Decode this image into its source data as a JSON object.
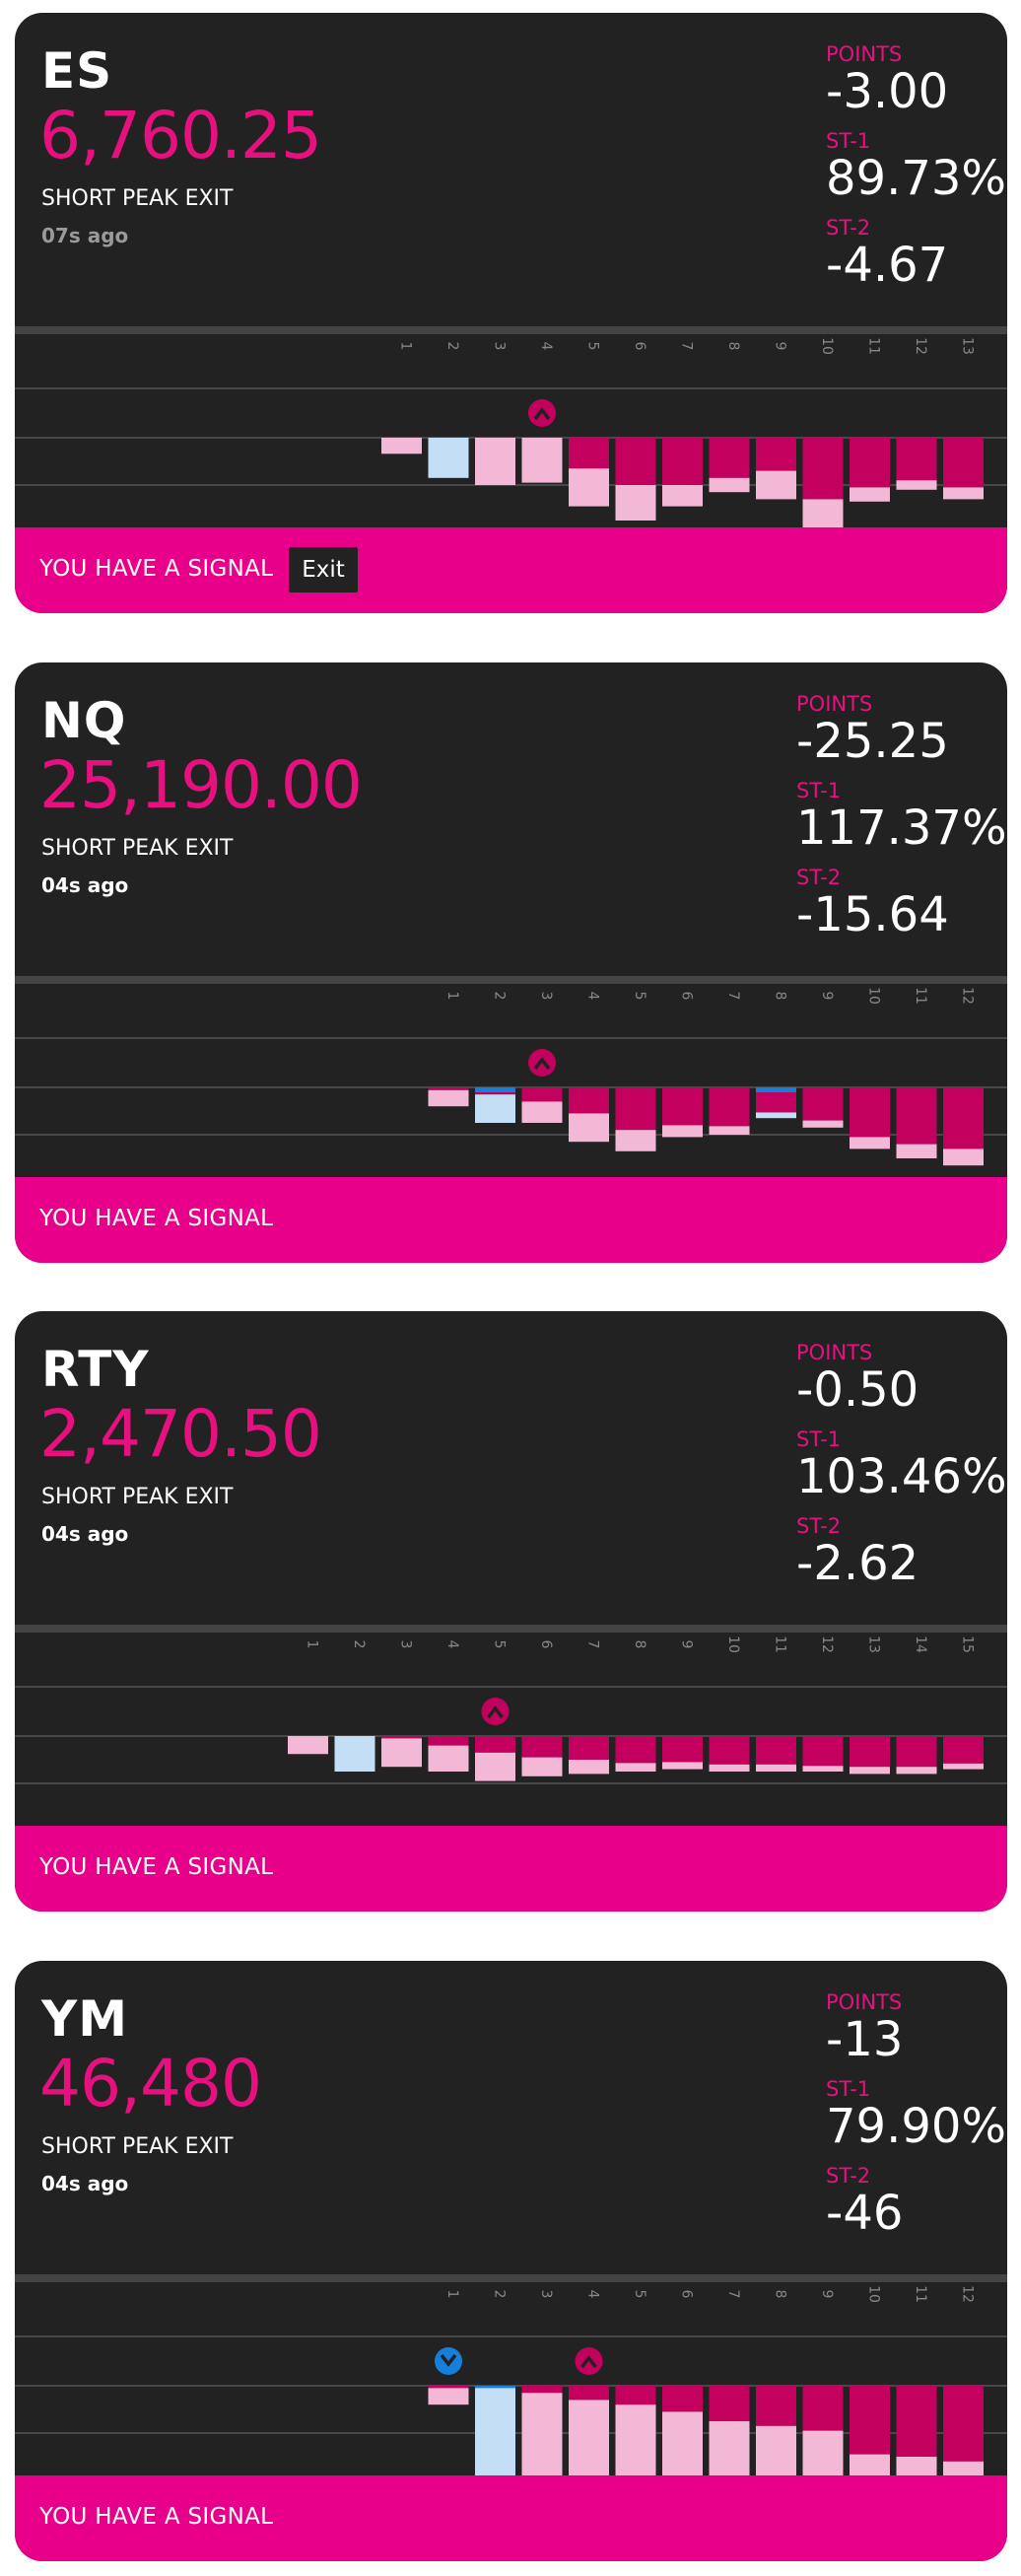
{
  "colors": {
    "card_bg": "#222222",
    "accent": "#e6117f",
    "footer_bg": "#e8008a",
    "bar_magenta": "#c4005e",
    "bar_pink": "#f2b8d6",
    "bar_light_blue": "#c4dff5",
    "bar_blue": "#1480dc"
  },
  "cards": [
    {
      "symbol": "ES",
      "price": "6,760.25",
      "signal_type": "SHORT PEAK EXIT",
      "age": "07s ago",
      "age_dim": true,
      "points_label": "POINTS",
      "points": "-3.00",
      "st1_label": "ST-1",
      "st1": "89.73%",
      "st2_label": "ST-2",
      "st2": "-4.67",
      "footer_text": "YOU HAVE A SIGNAL",
      "exit_label": "Exit",
      "chart_data": {
        "type": "bar",
        "categories": [
          "1",
          "2",
          "3",
          "4",
          "5",
          "6",
          "7",
          "8",
          "9",
          "10",
          "11",
          "12",
          "13"
        ],
        "bars": [
          {
            "cap": "none",
            "light": "pink",
            "value": 0.34
          },
          {
            "cap": "blue",
            "light": "lightblue",
            "value": 0.85
          },
          {
            "cap": "magenta",
            "light": "pink",
            "value": 1.0
          },
          {
            "cap": "magenta",
            "light": "pink",
            "value": 0.95
          },
          {
            "cap": "magenta",
            "light": "pink",
            "value": 0.8
          },
          {
            "cap": "magenta",
            "light": "pink",
            "value": 0.75
          },
          {
            "cap": "magenta",
            "light": "pink",
            "value": 0.45
          },
          {
            "cap": "magenta",
            "light": "pink",
            "value": 0.3
          },
          {
            "cap": "magenta",
            "light": "pink",
            "value": 0.6
          },
          {
            "cap": "magenta",
            "light": "pink",
            "value": 0.7
          },
          {
            "cap": "magenta",
            "light": "pink",
            "value": 0.3
          },
          {
            "cap": "magenta",
            "light": "pink",
            "value": 0.2
          },
          {
            "cap": "magenta",
            "light": "pink",
            "value": 0.25
          }
        ],
        "bar_totals": [
          0.34,
          0.85,
          1.0,
          0.95,
          1.45,
          1.75,
          1.45,
          1.15,
          1.3,
          2.0,
          1.35,
          1.1,
          1.3
        ],
        "markers": [
          {
            "index": 3,
            "shape": "peak",
            "color": "magenta"
          }
        ]
      }
    },
    {
      "symbol": "NQ",
      "price": "25,190.00",
      "signal_type": "SHORT PEAK EXIT",
      "age": "04s ago",
      "age_dim": false,
      "points_label": "POINTS",
      "points": "-25.25",
      "st1_label": "ST-1",
      "st1": "117.37%",
      "st2_label": "ST-2",
      "st2": "-15.64",
      "footer_text": "YOU HAVE A SIGNAL",
      "exit_label": "",
      "chart_data": {
        "type": "bar",
        "categories": [
          "1",
          "2",
          "3",
          "4",
          "5",
          "6",
          "7",
          "8",
          "9",
          "10",
          "11",
          "12"
        ],
        "bars": [
          {
            "cap": "magenta",
            "light": "pink",
            "value": 0.34
          },
          {
            "cap": "blue",
            "light": "lightblue",
            "value": 0.6
          },
          {
            "cap": "magenta",
            "light": "pink",
            "value": 0.45
          },
          {
            "cap": "magenta",
            "light": "pink",
            "value": 0.6
          },
          {
            "cap": "magenta",
            "light": "pink",
            "value": 0.45
          },
          {
            "cap": "magenta",
            "light": "pink",
            "value": 0.25
          },
          {
            "cap": "magenta",
            "light": "pink",
            "value": 0.18
          },
          {
            "cap": "blue",
            "light": "lightblue",
            "value": 0.12
          },
          {
            "cap": "magenta",
            "light": "pink",
            "value": 0.15
          },
          {
            "cap": "magenta",
            "light": "pink",
            "value": 0.25
          },
          {
            "cap": "magenta",
            "light": "pink",
            "value": 0.3
          },
          {
            "cap": "magenta",
            "light": "pink",
            "value": 0.35
          }
        ],
        "bar_totals": [
          0.4,
          0.75,
          0.75,
          1.15,
          1.35,
          1.05,
          1.0,
          0.65,
          0.85,
          1.3,
          1.5,
          1.65
        ],
        "markers": [
          {
            "index": 2,
            "shape": "peak",
            "color": "magenta"
          }
        ]
      }
    },
    {
      "symbol": "RTY",
      "price": "2,470.50",
      "signal_type": "SHORT PEAK EXIT",
      "age": "04s ago",
      "age_dim": false,
      "points_label": "POINTS",
      "points": "-0.50",
      "st1_label": "ST-1",
      "st1": "103.46%",
      "st2_label": "ST-2",
      "st2": "-2.62",
      "footer_text": "YOU HAVE A SIGNAL",
      "exit_label": "",
      "chart_data": {
        "type": "bar",
        "categories": [
          "1",
          "2",
          "3",
          "4",
          "5",
          "6",
          "7",
          "8",
          "9",
          "10",
          "11",
          "12",
          "13",
          "14",
          "15"
        ],
        "bars": [
          {
            "cap": "none",
            "light": "pink",
            "value": 0.38
          },
          {
            "cap": "blue",
            "light": "lightblue",
            "value": 0.75
          },
          {
            "cap": "magenta",
            "light": "pink",
            "value": 0.6
          },
          {
            "cap": "magenta",
            "light": "pink",
            "value": 0.55
          },
          {
            "cap": "magenta",
            "light": "pink",
            "value": 0.6
          },
          {
            "cap": "magenta",
            "light": "pink",
            "value": 0.4
          },
          {
            "cap": "magenta",
            "light": "pink",
            "value": 0.3
          },
          {
            "cap": "magenta",
            "light": "pink",
            "value": 0.18
          },
          {
            "cap": "magenta",
            "light": "pink",
            "value": 0.15
          },
          {
            "cap": "magenta",
            "light": "pink",
            "value": 0.15
          },
          {
            "cap": "magenta",
            "light": "pink",
            "value": 0.15
          },
          {
            "cap": "magenta",
            "light": "pink",
            "value": 0.12
          },
          {
            "cap": "magenta",
            "light": "pink",
            "value": 0.15
          },
          {
            "cap": "magenta",
            "light": "pink",
            "value": 0.15
          },
          {
            "cap": "magenta",
            "light": "pink",
            "value": 0.12
          }
        ],
        "bar_totals": [
          0.38,
          0.75,
          0.65,
          0.75,
          0.95,
          0.85,
          0.8,
          0.75,
          0.7,
          0.75,
          0.75,
          0.75,
          0.8,
          0.8,
          0.7
        ],
        "markers": [
          {
            "index": 4,
            "shape": "peak",
            "color": "magenta"
          }
        ]
      }
    },
    {
      "symbol": "YM",
      "price": "46,480",
      "signal_type": "SHORT PEAK EXIT",
      "age": "04s ago",
      "age_dim": false,
      "points_label": "POINTS",
      "points": "-13",
      "st1_label": "ST-1",
      "st1": "79.90%",
      "st2_label": "ST-2",
      "st2": "-46",
      "footer_text": "YOU HAVE A SIGNAL",
      "exit_label": "",
      "chart_data": {
        "type": "bar",
        "categories": [
          "1",
          "2",
          "3",
          "4",
          "5",
          "6",
          "7",
          "8",
          "9",
          "10",
          "11",
          "12"
        ],
        "bars": [
          {
            "cap": "magenta",
            "light": "pink",
            "value": 0.35
          },
          {
            "cap": "blue",
            "light": "lightblue",
            "value": 1.95
          },
          {
            "cap": "magenta",
            "light": "pink",
            "value": 1.85
          },
          {
            "cap": "magenta",
            "light": "pink",
            "value": 1.7
          },
          {
            "cap": "magenta",
            "light": "pink",
            "value": 1.6
          },
          {
            "cap": "magenta",
            "light": "pink",
            "value": 1.45
          },
          {
            "cap": "magenta",
            "light": "pink",
            "value": 1.25
          },
          {
            "cap": "magenta",
            "light": "pink",
            "value": 1.15
          },
          {
            "cap": "magenta",
            "light": "pink",
            "value": 1.05
          },
          {
            "cap": "magenta",
            "light": "pink",
            "value": 0.55
          },
          {
            "cap": "magenta",
            "light": "pink",
            "value": 0.5
          },
          {
            "cap": "magenta",
            "light": "pink",
            "value": 0.4
          }
        ],
        "bar_totals": [
          0.4,
          2.0,
          2.0,
          2.0,
          2.0,
          2.0,
          2.0,
          2.0,
          2.0,
          2.0,
          2.0,
          2.0
        ],
        "markers": [
          {
            "index": 0,
            "shape": "trough",
            "color": "blue"
          },
          {
            "index": 3,
            "shape": "peak",
            "color": "magenta"
          }
        ]
      }
    }
  ]
}
